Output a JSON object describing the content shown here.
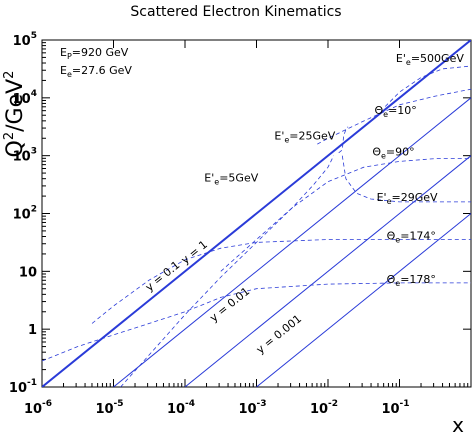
{
  "chart_data": {
    "type": "line",
    "title": "Scattered Electron Kinematics",
    "xlabel": "x",
    "ylabel_main": "Q",
    "ylabel_sup": "2",
    "ylabel_unit": "/GeV",
    "ylabel_unit_sup": "2",
    "xscale": "log",
    "yscale": "log",
    "xlim_exp": [
      -6,
      0
    ],
    "ylim_exp": [
      -1,
      5
    ],
    "grid": false,
    "x_ticks": [
      {
        "base": "10",
        "exp": "-6",
        "v": -6
      },
      {
        "base": "10",
        "exp": "-5",
        "v": -5
      },
      {
        "base": "10",
        "exp": "-4",
        "v": -4
      },
      {
        "base": "10",
        "exp": "-3",
        "v": -3
      },
      {
        "base": "10",
        "exp": "-2",
        "v": -2
      },
      {
        "base": "10",
        "exp": "-1",
        "v": -1
      }
    ],
    "y_ticks": [
      {
        "base": "10",
        "exp": "-1",
        "v": -1
      },
      {
        "base": "1",
        "exp": "",
        "v": 0
      },
      {
        "base": "10",
        "exp": "",
        "v": 1
      },
      {
        "base": "10",
        "exp": "2",
        "v": 2
      },
      {
        "base": "10",
        "exp": "3",
        "v": 3
      },
      {
        "base": "10",
        "exp": "4",
        "v": 4
      },
      {
        "base": "10",
        "exp": "5",
        "v": 5
      }
    ],
    "beam_info": [
      {
        "sym": "E",
        "sub": "P",
        "value": "=920 GeV"
      },
      {
        "sym": "E",
        "sub": "e",
        "value": "=27.6 GeV"
      }
    ],
    "series": [
      {
        "name": "y = 1",
        "style": "solid-thick",
        "points": [
          [
            -6,
            -1
          ],
          [
            0,
            5
          ]
        ]
      },
      {
        "name": "y = 0.1",
        "style": "solid",
        "points": [
          [
            -5,
            -1
          ],
          [
            0,
            4
          ]
        ]
      },
      {
        "name": "y = 0.01",
        "style": "solid",
        "points": [
          [
            -4,
            -1
          ],
          [
            0,
            3
          ]
        ]
      },
      {
        "name": "y = 0.001",
        "style": "solid",
        "points": [
          [
            -3,
            -1
          ],
          [
            0,
            2
          ]
        ]
      },
      {
        "name": "Θe=178°",
        "style": "dashed",
        "points": [
          [
            -6,
            -0.55
          ],
          [
            -5.5,
            -0.3
          ],
          [
            -5,
            -0.1
          ],
          [
            -4.5,
            0.1
          ],
          [
            -4,
            0.3
          ],
          [
            -3.5,
            0.55
          ],
          [
            -3,
            0.7
          ],
          [
            -2,
            0.78
          ],
          [
            -1,
            0.8
          ],
          [
            0,
            0.8
          ]
        ]
      },
      {
        "name": "Θe=174°",
        "style": "dashed",
        "points": [
          [
            -5.3,
            0.1
          ],
          [
            -5,
            0.4
          ],
          [
            -4.5,
            0.85
          ],
          [
            -4,
            1.2
          ],
          [
            -3.5,
            1.4
          ],
          [
            -3,
            1.5
          ],
          [
            -2,
            1.55
          ],
          [
            -1,
            1.55
          ],
          [
            0,
            1.55
          ]
        ]
      },
      {
        "name": "Θe=90°",
        "style": "dashed",
        "points": [
          [
            -3.5,
            1.0
          ],
          [
            -3,
            1.55
          ],
          [
            -2.5,
            2.1
          ],
          [
            -2,
            2.55
          ],
          [
            -1.5,
            2.8
          ],
          [
            -1,
            2.9
          ],
          [
            -0.5,
            2.95
          ],
          [
            0,
            2.95
          ]
        ]
      },
      {
        "name": "Θe=10°",
        "style": "dashed",
        "points": [
          [
            -2.15,
            3.2
          ],
          [
            -2,
            3.3
          ],
          [
            -1.5,
            3.6
          ],
          [
            -1,
            3.88
          ],
          [
            -0.5,
            4.03
          ],
          [
            0,
            4.15
          ]
        ]
      },
      {
        "name": "E'e=500GeV",
        "style": "dashed",
        "points": [
          [
            -1.2,
            3.85
          ],
          [
            -1,
            4.1
          ],
          [
            -0.7,
            4.35
          ],
          [
            -0.4,
            4.5
          ],
          [
            0,
            4.55
          ]
        ]
      },
      {
        "name": "E'e=5GeV",
        "style": "dashed",
        "points": [
          [
            -4.9,
            -1
          ],
          [
            -4,
            0.25
          ],
          [
            -3.5,
            0.9
          ],
          [
            -3,
            1.5
          ],
          [
            -2.5,
            2.1
          ],
          [
            -2.2,
            2.5
          ],
          [
            -2.0,
            2.8
          ],
          [
            -1.92,
            3.0
          ]
        ]
      },
      {
        "name": "E'e=25GeV",
        "style": "dashed",
        "points": [
          [
            -1.85,
            3.05
          ],
          [
            -1.8,
            3.1
          ],
          [
            -1.78,
            3.35
          ],
          [
            -1.75,
            3.45
          ],
          [
            -1.72,
            3.5
          ]
        ]
      },
      {
        "name": "E'e=29GeV",
        "style": "dashed",
        "points": [
          [
            -1.8,
            3.0
          ],
          [
            -1.75,
            2.6
          ],
          [
            -1.6,
            2.35
          ],
          [
            -1.4,
            2.25
          ],
          [
            -1.0,
            2.2
          ],
          [
            -0.5,
            2.2
          ],
          [
            0,
            2.2
          ]
        ]
      }
    ],
    "annotations": [
      {
        "sym": "E'",
        "sub": "e",
        "value": "=500GeV",
        "x": -1.05,
        "y": 4.62
      },
      {
        "sym": "Θ",
        "sub": "e",
        "value": "=10°",
        "x": -1.35,
        "y": 3.72
      },
      {
        "sym": "E'",
        "sub": "e",
        "value": "=25GeV",
        "x": -2.75,
        "y": 3.28
      },
      {
        "sym": "Θ",
        "sub": "e",
        "value": "=90°",
        "x": -1.38,
        "y": 3.0
      },
      {
        "sym": "E'",
        "sub": "e",
        "value": "=5GeV",
        "x": -3.73,
        "y": 2.55
      },
      {
        "sym": "E'",
        "sub": "e",
        "value": "=29GeV",
        "x": -1.32,
        "y": 2.22
      },
      {
        "sym": "Θ",
        "sub": "e",
        "value": "=174°",
        "x": -1.18,
        "y": 1.55
      },
      {
        "sym": "Θ",
        "sub": "e",
        "value": "=178°",
        "x": -1.18,
        "y": 0.8
      }
    ],
    "line_labels": [
      {
        "text": "y = 1",
        "x": -4.0,
        "y": 1.12
      },
      {
        "text": "y = 0.1",
        "x": -4.5,
        "y": 0.65
      },
      {
        "text": "y = 0.01",
        "x": -3.6,
        "y": 0.12
      },
      {
        "text": "y = 0.001",
        "x": -2.95,
        "y": -0.43
      }
    ]
  }
}
